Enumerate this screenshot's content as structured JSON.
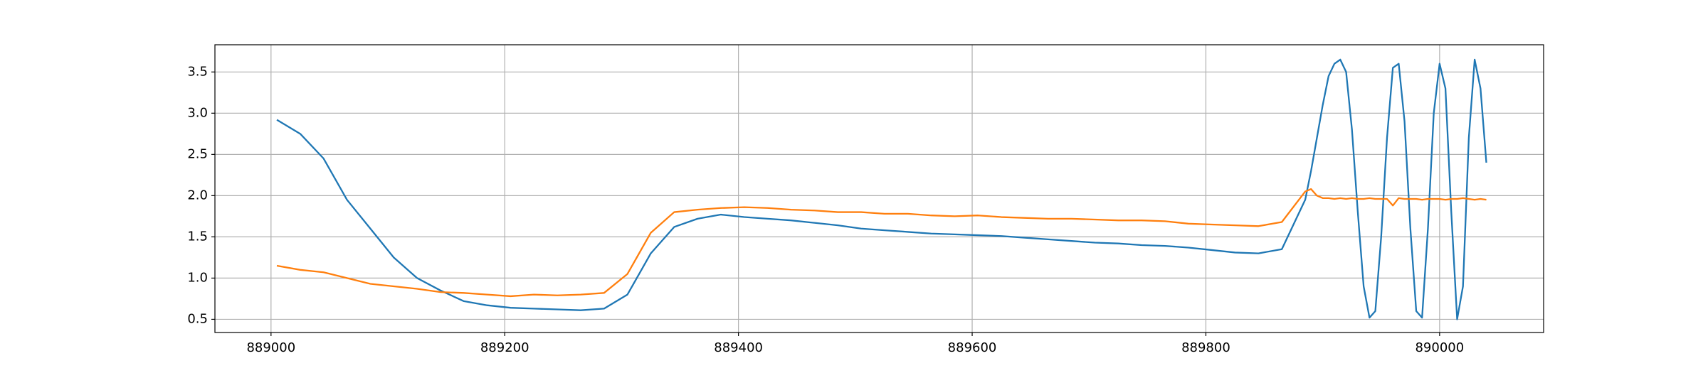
{
  "chart_data": {
    "type": "line",
    "x": [
      889005,
      889025,
      889045,
      889065,
      889085,
      889105,
      889125,
      889145,
      889165,
      889185,
      889205,
      889225,
      889245,
      889265,
      889285,
      889305,
      889325,
      889345,
      889365,
      889385,
      889405,
      889425,
      889445,
      889465,
      889485,
      889505,
      889525,
      889545,
      889565,
      889585,
      889605,
      889625,
      889645,
      889665,
      889685,
      889705,
      889725,
      889745,
      889765,
      889785,
      889805,
      889825,
      889845,
      889865,
      889885,
      889890,
      889895,
      889900,
      889905,
      889910,
      889915,
      889920,
      889925,
      889930,
      889935,
      889940,
      889945,
      889950,
      889955,
      889960,
      889965,
      889970,
      889975,
      889980,
      889985,
      889990,
      889995,
      890000,
      890005,
      890010,
      890015,
      890020,
      890025,
      890030,
      890035,
      890040
    ],
    "series": [
      {
        "color": "#1f77b4",
        "values": [
          2.92,
          2.75,
          2.45,
          1.95,
          1.6,
          1.25,
          1.0,
          0.85,
          0.72,
          0.67,
          0.64,
          0.63,
          0.62,
          0.61,
          0.63,
          0.8,
          1.3,
          1.62,
          1.72,
          1.77,
          1.74,
          1.72,
          1.7,
          1.67,
          1.64,
          1.6,
          1.58,
          1.56,
          1.54,
          1.53,
          1.52,
          1.51,
          1.49,
          1.47,
          1.45,
          1.43,
          1.42,
          1.4,
          1.39,
          1.37,
          1.34,
          1.31,
          1.3,
          1.35,
          1.95,
          2.3,
          2.7,
          3.1,
          3.45,
          3.6,
          3.65,
          3.5,
          2.8,
          1.8,
          0.9,
          0.52,
          0.6,
          1.5,
          2.7,
          3.55,
          3.6,
          2.9,
          1.6,
          0.6,
          0.52,
          1.6,
          3.0,
          3.6,
          3.3,
          1.8,
          0.5,
          0.9,
          2.7,
          3.65,
          3.3,
          2.4
        ]
      },
      {
        "color": "#ff7f0e",
        "values": [
          1.15,
          1.1,
          1.07,
          1.0,
          0.93,
          0.9,
          0.87,
          0.83,
          0.82,
          0.8,
          0.78,
          0.8,
          0.79,
          0.8,
          0.82,
          1.05,
          1.55,
          1.8,
          1.83,
          1.85,
          1.86,
          1.85,
          1.83,
          1.82,
          1.8,
          1.8,
          1.78,
          1.78,
          1.76,
          1.75,
          1.76,
          1.74,
          1.73,
          1.72,
          1.72,
          1.71,
          1.7,
          1.7,
          1.69,
          1.66,
          1.65,
          1.64,
          1.63,
          1.68,
          2.05,
          2.08,
          2.0,
          1.97,
          1.97,
          1.96,
          1.97,
          1.96,
          1.97,
          1.96,
          1.96,
          1.97,
          1.96,
          1.96,
          1.96,
          1.88,
          1.97,
          1.96,
          1.96,
          1.96,
          1.95,
          1.96,
          1.96,
          1.96,
          1.95,
          1.96,
          1.96,
          1.97,
          1.96,
          1.95,
          1.96,
          1.95
        ]
      }
    ],
    "xlim": [
      888952,
      890089
    ],
    "ylim": [
      0.34,
      3.83
    ],
    "xticks": [
      889000,
      889200,
      889400,
      889600,
      889800,
      890000
    ],
    "yticks": [
      0.5,
      {
        "value": 1,
        "label": "1.0"
      },
      1.5,
      {
        "value": 2,
        "label": "2.0"
      },
      2.5,
      {
        "value": 3,
        "label": "3.0"
      },
      3.5
    ],
    "grid": true
  }
}
